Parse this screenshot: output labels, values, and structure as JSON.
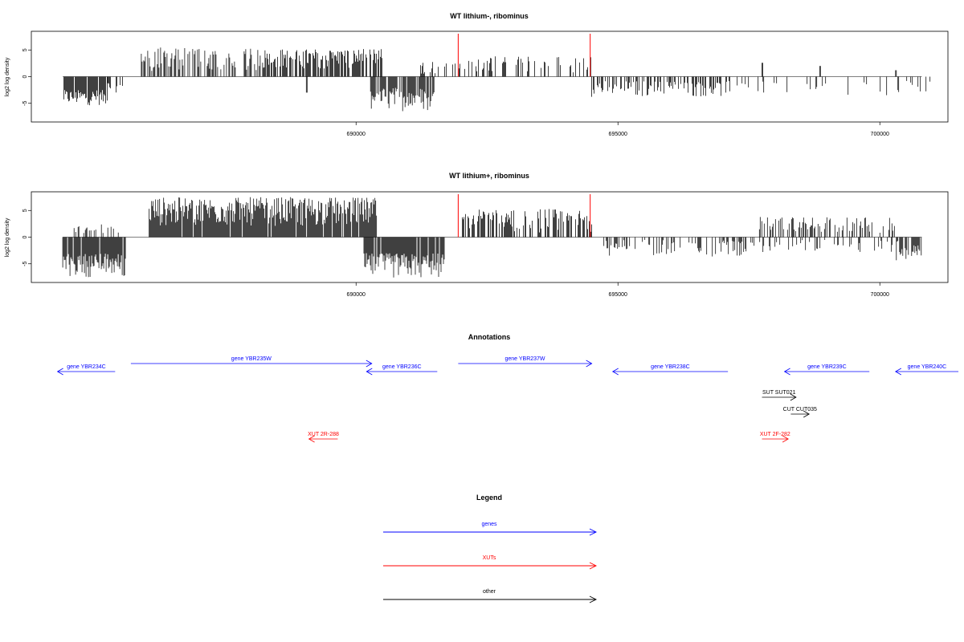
{
  "chart_data": [
    {
      "type": "bar",
      "title": "WT lithium-, ribominus",
      "ylabel": "log2 log density",
      "xlabel": "",
      "xlim": [
        683800,
        701300
      ],
      "ylim": [
        -8.5,
        8.5
      ],
      "yticks": [
        -5,
        0,
        5
      ],
      "xticks": [
        {
          "value": 690000,
          "label": "690000"
        },
        {
          "value": 695000,
          "label": "695000"
        },
        {
          "value": 700000,
          "label": "700000"
        }
      ],
      "baseline": 0,
      "markers": [
        {
          "x": 691950,
          "color": "#ff0000"
        },
        {
          "x": 694470,
          "color": "#ff0000"
        }
      ],
      "segments": [
        {
          "start": 684420,
          "end": 685250,
          "min": -5.4,
          "max": -2.5,
          "density": 0.9,
          "sign": -1
        },
        {
          "start": 685250,
          "end": 685550,
          "min": -3.0,
          "max": -1.0,
          "density": 0.5,
          "sign": -1
        },
        {
          "start": 685900,
          "end": 688300,
          "min": 1.0,
          "max": 5.5,
          "density": 0.55,
          "sign": 1
        },
        {
          "start": 688300,
          "end": 690500,
          "min": 1.5,
          "max": 5.2,
          "density": 0.75,
          "sign": 1
        },
        {
          "start": 689050,
          "end": 689080,
          "min": -3.0,
          "max": -3.0,
          "density": 1,
          "sign": -1
        },
        {
          "start": 690260,
          "end": 691500,
          "min": -6.5,
          "max": -2.0,
          "density": 0.8,
          "sign": -1
        },
        {
          "start": 691200,
          "end": 691900,
          "min": 0.5,
          "max": 3.2,
          "density": 0.25,
          "sign": 1
        },
        {
          "start": 691950,
          "end": 694500,
          "min": 0.8,
          "max": 3.8,
          "density": 0.3,
          "sign": 1
        },
        {
          "start": 694500,
          "end": 697200,
          "min": -3.8,
          "max": -0.8,
          "density": 0.45,
          "sign": -1
        },
        {
          "start": 697200,
          "end": 701000,
          "min": -3.5,
          "max": -0.5,
          "density": 0.12,
          "sign": -1
        },
        {
          "start": 697750,
          "end": 697780,
          "min": 2.6,
          "max": 2.6,
          "density": 1,
          "sign": 1
        },
        {
          "start": 698850,
          "end": 698880,
          "min": 2.0,
          "max": 2.0,
          "density": 1,
          "sign": 1
        },
        {
          "start": 700300,
          "end": 700330,
          "min": 1.2,
          "max": 1.2,
          "density": 1,
          "sign": 1
        }
      ]
    },
    {
      "type": "bar",
      "title": "WT lithium+, ribominus",
      "ylabel": "log2 log density",
      "xlabel": "",
      "xlim": [
        683800,
        701300
      ],
      "ylim": [
        -8.5,
        8.5
      ],
      "yticks": [
        -5,
        0,
        5
      ],
      "xticks": [
        {
          "value": 690000,
          "label": "690000"
        },
        {
          "value": 695000,
          "label": "695000"
        },
        {
          "value": 700000,
          "label": "700000"
        }
      ],
      "baseline": 0,
      "markers": [
        {
          "x": 691950,
          "color": "#ff0000"
        },
        {
          "x": 694470,
          "color": "#ff0000"
        }
      ],
      "segments": [
        {
          "start": 684400,
          "end": 685600,
          "min": -7.5,
          "max": -3.0,
          "density": 0.95,
          "sign": -1
        },
        {
          "start": 684600,
          "end": 685500,
          "min": 0.5,
          "max": 2.5,
          "density": 0.3,
          "sign": 1
        },
        {
          "start": 686050,
          "end": 690400,
          "min": 2.0,
          "max": 7.5,
          "density": 0.95,
          "sign": 1
        },
        {
          "start": 690150,
          "end": 691700,
          "min": -7.8,
          "max": -3.0,
          "density": 0.9,
          "sign": -1
        },
        {
          "start": 692000,
          "end": 694500,
          "min": 0.8,
          "max": 5.3,
          "density": 0.6,
          "sign": 1
        },
        {
          "start": 694700,
          "end": 697500,
          "min": -3.8,
          "max": -0.5,
          "density": 0.35,
          "sign": -1
        },
        {
          "start": 697700,
          "end": 700300,
          "min": 0.8,
          "max": 3.8,
          "density": 0.4,
          "sign": 1
        },
        {
          "start": 697400,
          "end": 700400,
          "min": -3.0,
          "max": -0.5,
          "density": 0.2,
          "sign": -1
        },
        {
          "start": 700300,
          "end": 700800,
          "min": -4.5,
          "max": -1.5,
          "density": 0.8,
          "sign": -1
        }
      ]
    },
    {
      "type": "other",
      "title": "Annotations",
      "xlim": [
        683800,
        701300
      ],
      "features": [
        {
          "label": "gene YBR234C",
          "start": 684300,
          "end": 685400,
          "strand": "-",
          "row": 0,
          "color": "#0000ff"
        },
        {
          "label": "gene YBR235W",
          "start": 685700,
          "end": 690300,
          "strand": "+",
          "row": 1,
          "color": "#0000ff"
        },
        {
          "label": "gene YBR236C",
          "start": 690200,
          "end": 691550,
          "strand": "-",
          "row": 0,
          "color": "#0000ff"
        },
        {
          "label": "gene YBR237W",
          "start": 691950,
          "end": 694500,
          "strand": "+",
          "row": 1,
          "color": "#0000ff"
        },
        {
          "label": "gene YBR238C",
          "start": 694900,
          "end": 697100,
          "strand": "-",
          "row": 0,
          "color": "#0000ff"
        },
        {
          "label": "gene YBR239C",
          "start": 698180,
          "end": 699800,
          "strand": "-",
          "row": 0,
          "color": "#0000ff"
        },
        {
          "label": "gene YBR240C",
          "start": 700300,
          "end": 701500,
          "strand": "-",
          "row": 0,
          "color": "#0000ff"
        },
        {
          "label": "SUT SUT021",
          "start": 697750,
          "end": 698400,
          "strand": "+",
          "row": 3,
          "color": "#000000"
        },
        {
          "label": "CUT CUT035",
          "start": 698300,
          "end": 698650,
          "strand": "+",
          "row": 4,
          "color": "#000000"
        },
        {
          "label": "XUT 2R-288",
          "start": 689100,
          "end": 689650,
          "strand": "-",
          "row": 5,
          "color": "#ff0000"
        },
        {
          "label": "XUT 2F-282",
          "start": 697750,
          "end": 698250,
          "strand": "+",
          "row": 5,
          "color": "#ff0000"
        }
      ]
    }
  ],
  "legend": {
    "title": "Legend",
    "items": [
      {
        "label": "genes",
        "color": "#0000ff"
      },
      {
        "label": "XUTs",
        "color": "#ff0000"
      },
      {
        "label": "other",
        "color": "#000000"
      }
    ]
  }
}
